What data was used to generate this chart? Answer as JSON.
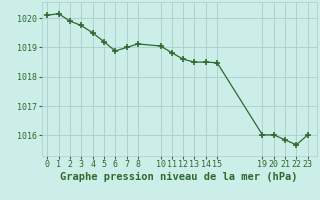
{
  "x": [
    0,
    1,
    2,
    3,
    4,
    5,
    6,
    7,
    8,
    10,
    11,
    12,
    13,
    14,
    15,
    19,
    20,
    21,
    22,
    23
  ],
  "y": [
    1020.1,
    1020.15,
    1019.9,
    1019.75,
    1019.5,
    1019.2,
    1018.88,
    1019.0,
    1019.12,
    1019.05,
    1018.82,
    1018.6,
    1018.5,
    1018.5,
    1018.48,
    1016.02,
    1016.02,
    1015.85,
    1015.68,
    1016.02
  ],
  "line_color": "#2d6a2d",
  "marker": "+",
  "marker_size": 4,
  "marker_lw": 1.2,
  "line_width": 0.9,
  "bg_color": "#cceee8",
  "grid_color": "#aacccc",
  "ylabel_ticks": [
    1016,
    1017,
    1018,
    1019,
    1020
  ],
  "xticks": [
    0,
    1,
    2,
    3,
    4,
    5,
    6,
    7,
    8,
    10,
    11,
    12,
    13,
    14,
    15,
    19,
    20,
    21,
    22,
    23
  ],
  "xlim": [
    -0.5,
    23.8
  ],
  "ylim": [
    1015.3,
    1020.55
  ],
  "xlabel": "Graphe pression niveau de la mer (hPa)",
  "xlabel_fontsize": 7.5,
  "tick_fontsize": 6.0,
  "tick_color": "#2d6a2d",
  "label_color": "#2d6a2d"
}
